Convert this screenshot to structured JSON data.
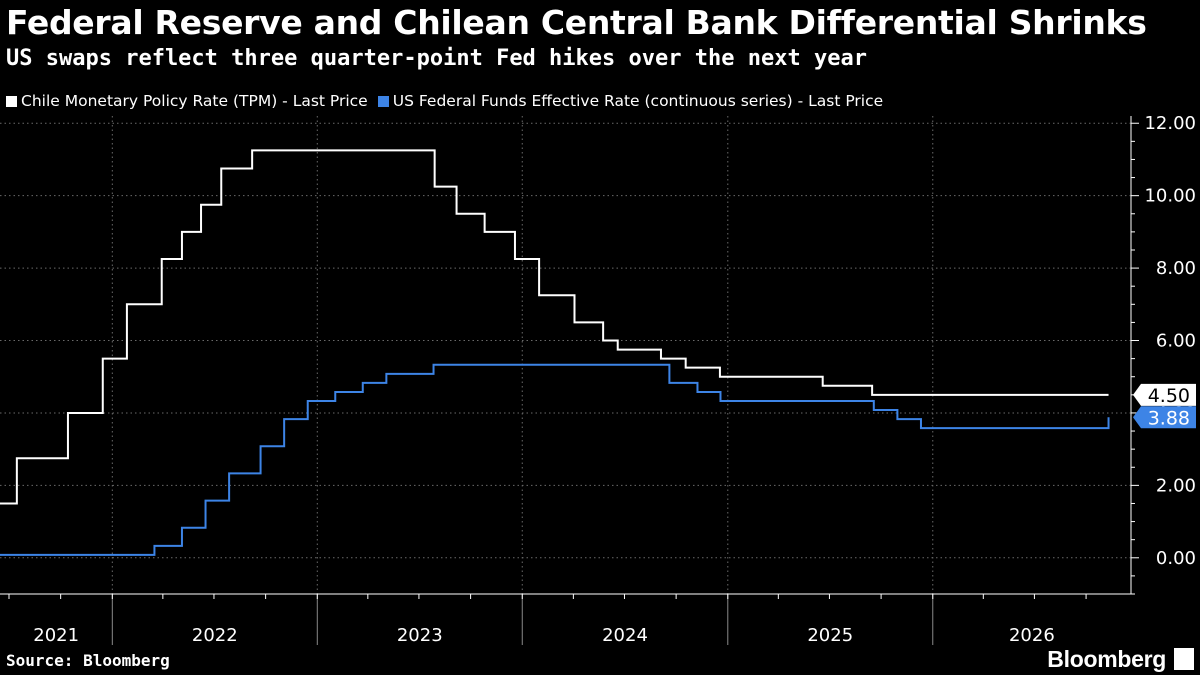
{
  "header": {
    "title": "Federal Reserve and Chilean Central Bank Differential Shrinks",
    "subtitle": "US swaps reflect three quarter-point Fed hikes over the next year"
  },
  "footer": {
    "source": "Source: Bloomberg",
    "brand": "Bloomberg"
  },
  "chart_data": {
    "type": "line",
    "title": "Federal Reserve and Chilean Central Bank Differential Shrinks",
    "subtitle": "US swaps reflect three quarter-point Fed hikes over the next year",
    "xlabel": "",
    "ylabel": "",
    "x_tick_labels": [
      "2021",
      "2022",
      "2023",
      "2024",
      "2025",
      "2026"
    ],
    "y_ticks": [
      0,
      2,
      4,
      6,
      8,
      10,
      12
    ],
    "y_tick_labels": [
      "0.00",
      "2.00",
      "4.00",
      "6.00",
      "8.00",
      "10.00",
      "12.00"
    ],
    "ylim": [
      -1,
      12.2
    ],
    "xlim": [
      "2021-06-15",
      "2026-12-20"
    ],
    "y_axis_position": "right",
    "grid": true,
    "legend_position": "top-left",
    "series": [
      {
        "name": "Chile Monetary Policy Rate (TPM) - Last Price",
        "color": "#ffffff",
        "last_value_label": "4.50",
        "step": true,
        "points": [
          [
            "2021-06-15",
            1.5
          ],
          [
            "2021-07-15",
            2.75
          ],
          [
            "2021-10-14",
            4.0
          ],
          [
            "2021-12-15",
            5.5
          ],
          [
            "2022-01-27",
            7.0
          ],
          [
            "2022-03-30",
            8.25
          ],
          [
            "2022-05-05",
            9.0
          ],
          [
            "2022-06-08",
            9.75
          ],
          [
            "2022-07-14",
            10.75
          ],
          [
            "2022-09-07",
            11.25
          ],
          [
            "2023-07-29",
            10.25
          ],
          [
            "2023-09-06",
            9.5
          ],
          [
            "2023-10-26",
            9.0
          ],
          [
            "2023-12-19",
            8.25
          ],
          [
            "2024-01-31",
            7.25
          ],
          [
            "2024-04-03",
            6.5
          ],
          [
            "2024-05-24",
            6.0
          ],
          [
            "2024-06-19",
            5.75
          ],
          [
            "2024-09-04",
            5.5
          ],
          [
            "2024-10-18",
            5.25
          ],
          [
            "2024-12-18",
            5.0
          ],
          [
            "2025-06-19",
            4.75
          ],
          [
            "2025-09-15",
            4.5
          ],
          [
            "2026-11-10",
            4.5
          ]
        ]
      },
      {
        "name": "US Federal Funds Effective Rate (continuous series) - Last Price",
        "color": "#3d84e6",
        "last_value_label": "3.88",
        "step": true,
        "points": [
          [
            "2021-06-15",
            0.08
          ],
          [
            "2022-03-17",
            0.33
          ],
          [
            "2022-05-05",
            0.83
          ],
          [
            "2022-06-16",
            1.58
          ],
          [
            "2022-07-28",
            2.33
          ],
          [
            "2022-09-22",
            3.08
          ],
          [
            "2022-11-03",
            3.83
          ],
          [
            "2022-12-15",
            4.33
          ],
          [
            "2023-02-02",
            4.58
          ],
          [
            "2023-03-23",
            4.83
          ],
          [
            "2023-05-04",
            5.08
          ],
          [
            "2023-07-27",
            5.33
          ],
          [
            "2024-09-19",
            4.83
          ],
          [
            "2024-11-08",
            4.58
          ],
          [
            "2024-12-19",
            4.33
          ],
          [
            "2025-09-18",
            4.08
          ],
          [
            "2025-10-30",
            3.83
          ],
          [
            "2025-12-11",
            3.58
          ],
          [
            "2026-11-05",
            3.58
          ],
          [
            "2026-11-10",
            3.88
          ]
        ]
      }
    ]
  }
}
